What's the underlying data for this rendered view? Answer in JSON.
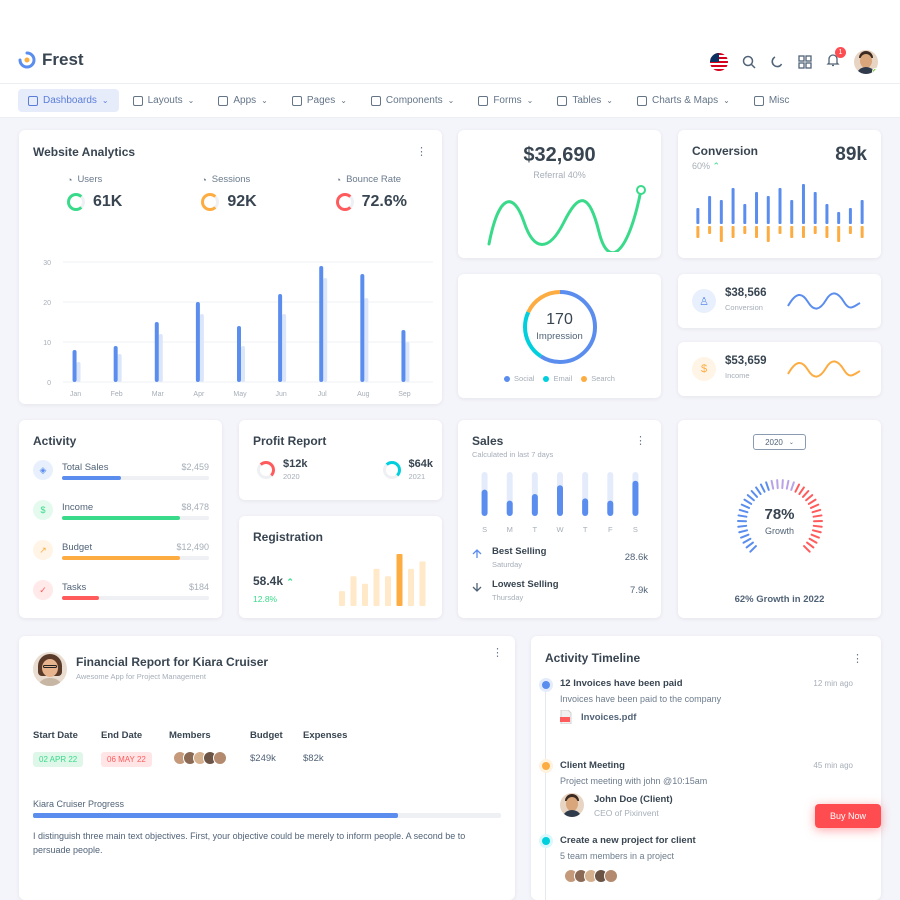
{
  "brand": {
    "name": "Frest",
    "accent": "#5a8dee"
  },
  "topbar": {
    "notif_count": "1"
  },
  "nav": [
    {
      "label": "Dashboards",
      "icon": "home-icon"
    },
    {
      "label": "Layouts",
      "icon": "layout-icon"
    },
    {
      "label": "Apps",
      "icon": "apps-icon"
    },
    {
      "label": "Pages",
      "icon": "pages-icon"
    },
    {
      "label": "Components",
      "icon": "components-icon"
    },
    {
      "label": "Forms",
      "icon": "forms-icon"
    },
    {
      "label": "Tables",
      "icon": "tables-icon"
    },
    {
      "label": "Charts & Maps",
      "icon": "charts-icon"
    },
    {
      "label": "Misc",
      "icon": "misc-icon"
    }
  ],
  "analytics": {
    "title": "Website Analytics",
    "stats": [
      {
        "label": "Users",
        "value": "61K",
        "color": "#39da8a",
        "icon": "user-icon"
      },
      {
        "label": "Sessions",
        "value": "92K",
        "color": "#fdac41",
        "icon": "clock-icon"
      },
      {
        "label": "Bounce Rate",
        "value": "72.6%",
        "color": "#ff5b5c",
        "icon": "trend-icon"
      }
    ],
    "chart_data": {
      "type": "bar",
      "categories": [
        "Jan",
        "Feb",
        "Mar",
        "Apr",
        "May",
        "Jun",
        "Jul",
        "Aug",
        "Sep"
      ],
      "series": [
        {
          "name": "Primary",
          "values": [
            8,
            9,
            15,
            20,
            14,
            22,
            29,
            27,
            13
          ]
        },
        {
          "name": "Secondary",
          "values": [
            5,
            7,
            12,
            17,
            9,
            17,
            26,
            21,
            10
          ]
        }
      ],
      "yticks": [
        "0",
        "10",
        "20",
        "30"
      ],
      "ylim": [
        0,
        30
      ]
    }
  },
  "referral": {
    "value": "$32,690",
    "label": "Referral 40%"
  },
  "conversion": {
    "title": "Conversion",
    "sub": "60%",
    "value": "89k",
    "chart_data": {
      "type": "bar",
      "series": [
        {
          "name": "up",
          "values": [
            4,
            7,
            6,
            9,
            5,
            8,
            7,
            9,
            6,
            10,
            8,
            5,
            3,
            4,
            6
          ]
        },
        {
          "name": "down",
          "values": [
            3,
            2,
            4,
            3,
            2,
            3,
            4,
            2,
            3,
            3,
            2,
            3,
            4,
            2,
            3
          ]
        }
      ]
    }
  },
  "stats_small": [
    {
      "value": "$38,566",
      "label": "Conversion",
      "color": "#5a8dee",
      "icon": "user-icon"
    },
    {
      "value": "$53,659",
      "label": "Income",
      "color": "#fdac41",
      "icon": "dollar-icon"
    }
  ],
  "impression": {
    "value": "170",
    "label": "Impression",
    "legend": [
      {
        "label": "Social",
        "color": "#5a8dee"
      },
      {
        "label": "Email",
        "color": "#00cfdd"
      },
      {
        "label": "Search",
        "color": "#fdac41"
      }
    ]
  },
  "activity": {
    "title": "Activity",
    "items": [
      {
        "label": "Total Sales",
        "value": "$2,459",
        "pct": 0.4,
        "color": "#5a8dee",
        "icon": "cube-icon"
      },
      {
        "label": "Income",
        "value": "$8,478",
        "pct": 0.8,
        "color": "#39da8a",
        "icon": "dollar-icon"
      },
      {
        "label": "Budget",
        "value": "$12,490",
        "pct": 0.8,
        "color": "#fdac41",
        "icon": "trend-icon"
      },
      {
        "label": "Tasks",
        "value": "$184",
        "pct": 0.25,
        "color": "#ff5b5c",
        "icon": "check-icon"
      }
    ]
  },
  "profit": {
    "title": "Profit Report",
    "items": [
      {
        "value": "$12k",
        "year": "2020",
        "color": "#ff5b5c"
      },
      {
        "value": "$64k",
        "year": "2021",
        "color": "#00cfdd"
      }
    ]
  },
  "registration": {
    "title": "Registration",
    "value": "58.4k",
    "change": "12.8%",
    "chart_data": {
      "type": "bar",
      "values": [
        2,
        4,
        3,
        5,
        4,
        7,
        5,
        6
      ]
    }
  },
  "sales": {
    "title": "Sales",
    "subtitle": "Calculated in last 7 days",
    "chart_data": {
      "type": "bar",
      "categories": [
        "S",
        "M",
        "T",
        "W",
        "T",
        "F",
        "S"
      ],
      "values": [
        0.6,
        0.35,
        0.5,
        0.7,
        0.4,
        0.35,
        0.8
      ]
    },
    "best": {
      "label": "Best Selling",
      "day": "Saturday",
      "value": "28.6k"
    },
    "lowest": {
      "label": "Lowest Selling",
      "day": "Thursday",
      "value": "7.9k"
    }
  },
  "growth": {
    "year": "2020",
    "value": "78%",
    "label": "Growth",
    "footer": "62% Growth in 2022"
  },
  "financial": {
    "title": "Financial Report for Kiara Cruiser",
    "subtitle": "Awesome App for Project Management",
    "cols": {
      "start": "Start Date",
      "end": "End Date",
      "members": "Members",
      "budget": "Budget",
      "expenses": "Expenses"
    },
    "start": "02 APR 22",
    "end": "06 MAY 22",
    "budget": "$249k",
    "expenses": "$82k",
    "progress_label": "Kiara Cruiser Progress",
    "progress": 0.78,
    "text": "I distinguish three main text objectives. First, your objective could be merely to inform people. A second be to persuade people."
  },
  "timeline": {
    "title": "Activity Timeline",
    "items": [
      {
        "title": "12 Invoices have been paid",
        "time": "12 min ago",
        "desc": "Invoices have been paid to the company",
        "file": "Invoices.pdf",
        "color": "#5a8dee"
      },
      {
        "title": "Client Meeting",
        "time": "45 min ago",
        "desc": "Project meeting with john @10:15am",
        "person": "John Doe (Client)",
        "role": "CEO of Pixinvent",
        "color": "#fdac41"
      },
      {
        "title": "Create a new project for client",
        "time": "",
        "desc": "5 team members in a project",
        "color": "#00cfdd"
      }
    ]
  },
  "buy_now": "Buy Now"
}
